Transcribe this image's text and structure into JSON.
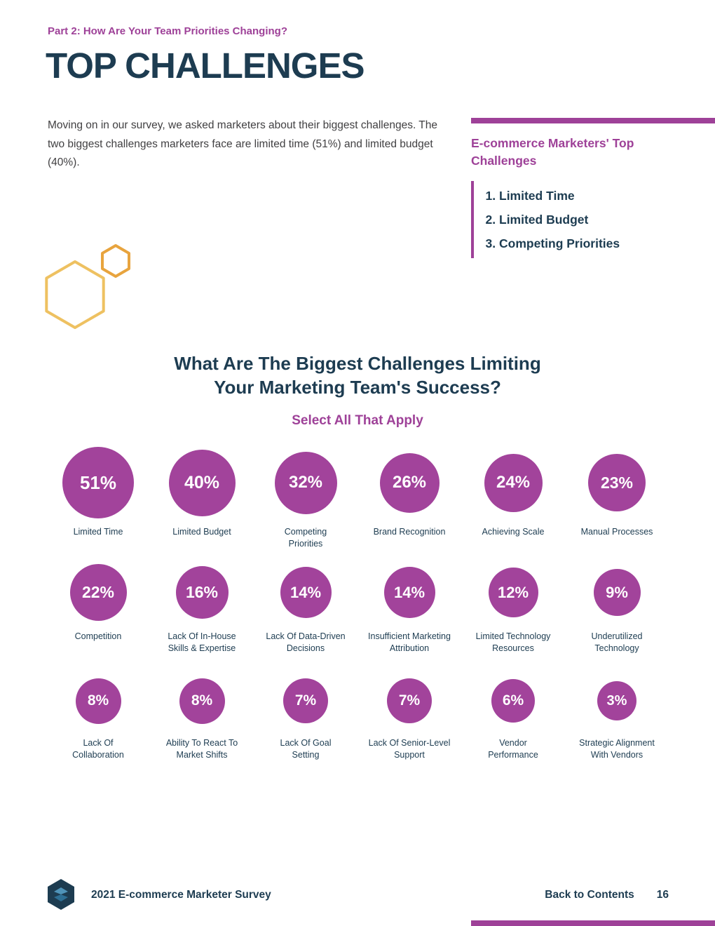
{
  "colors": {
    "purple": "#9e4198",
    "navy": "#1d3c51",
    "gold_light": "#eec161",
    "gold_dark": "#e8a43e",
    "body_text": "#414042",
    "bubble_fill": "#a2439b"
  },
  "header": {
    "kicker": "Part 2: How Are Your Team Priorities Changing?",
    "title": "TOP CHALLENGES",
    "intro": "Moving on in our survey, we asked marketers about their biggest challenges. The two biggest challenges marketers face are limited time (51%) and limited budget (40%)."
  },
  "sidebar": {
    "heading": "E-commerce Marketers' Top Challenges",
    "items": [
      "Limited Time",
      "Limited Budget",
      "Competing Priorities"
    ]
  },
  "chart_data": {
    "type": "bubble",
    "title": "What Are The Biggest Challenges Limiting\nYour Marketing Team's Success?",
    "subtitle": "Select All That Apply",
    "unit": "%",
    "points": [
      {
        "label": "Limited Time",
        "value": 51
      },
      {
        "label": "Limited Budget",
        "value": 40
      },
      {
        "label": "Competing\nPriorities",
        "value": 32
      },
      {
        "label": "Brand Recognition",
        "value": 26
      },
      {
        "label": "Achieving Scale",
        "value": 24
      },
      {
        "label": "Manual Processes",
        "value": 23
      },
      {
        "label": "Competition",
        "value": 22
      },
      {
        "label": "Lack Of In-House\nSkills & Expertise",
        "value": 16
      },
      {
        "label": "Lack Of Data-Driven\nDecisions",
        "value": 14
      },
      {
        "label": "Insufficient Marketing\nAttribution",
        "value": 14
      },
      {
        "label": "Limited Technology\nResources",
        "value": 12
      },
      {
        "label": "Underutilized\nTechnology",
        "value": 9
      },
      {
        "label": "Lack Of\nCollaboration",
        "value": 8
      },
      {
        "label": "Ability To React To\nMarket Shifts",
        "value": 8
      },
      {
        "label": "Lack Of Goal\nSetting",
        "value": 7
      },
      {
        "label": "Lack Of Senior-Level\nSupport",
        "value": 7
      },
      {
        "label": "Vendor\nPerformance",
        "value": 6
      },
      {
        "label": "Strategic Alignment\nWith Vendors",
        "value": 3
      }
    ]
  },
  "footer": {
    "survey_name": "2021 E-commerce Marketer Survey",
    "back_link": "Back to Contents",
    "page_number": "16"
  }
}
